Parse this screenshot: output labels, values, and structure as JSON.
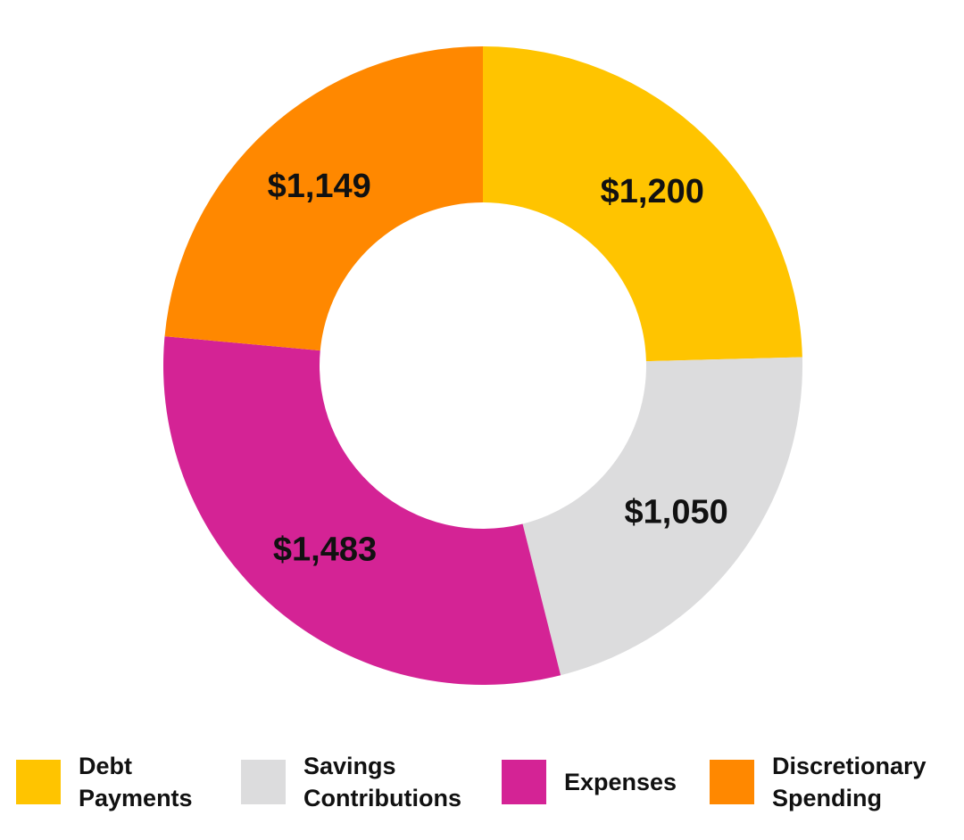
{
  "chart_data": {
    "type": "pie",
    "variant": "donut",
    "title": "",
    "categories": [
      "Debt Payments",
      "Savings Contributions",
      "Expenses",
      "Discretionary Spending"
    ],
    "values": [
      1200,
      1050,
      1483,
      1149
    ],
    "data_labels": [
      "$1,200",
      "$1,050",
      "$1,483",
      "$1,149"
    ],
    "colors": [
      "#FFC400",
      "#DCDCDD",
      "#D42395",
      "#FF8800"
    ],
    "legend": {
      "position": "bottom",
      "entries": [
        {
          "lines": [
            "Debt",
            "Payments"
          ],
          "color": "#FFC400"
        },
        {
          "lines": [
            "Savings",
            "Contributions"
          ],
          "color": "#DCDCDD"
        },
        {
          "lines": [
            "Expenses"
          ],
          "color": "#D42395"
        },
        {
          "lines": [
            "Discretionary",
            "Spending"
          ],
          "color": "#FF8800"
        }
      ]
    }
  }
}
